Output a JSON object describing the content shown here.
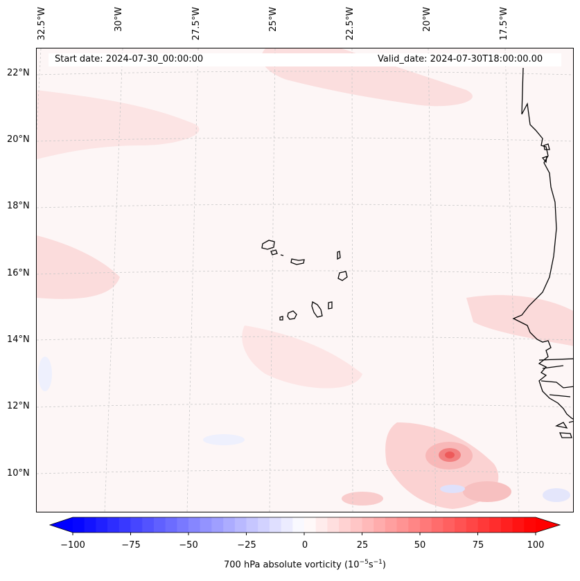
{
  "header": {
    "start_date": "Start date: 2024-07-30_00:00:00",
    "valid_date": "Valid_date: 2024-07-30T18:00:00.00"
  },
  "map": {
    "lon_labels": [
      "32.5°W",
      "30°W",
      "27.5°W",
      "25°W",
      "22.5°W",
      "20°W",
      "17.5°W"
    ],
    "lat_labels": [
      "22°N",
      "20°N",
      "18°N",
      "16°N",
      "14°N",
      "12°N",
      "10°N"
    ],
    "extent": {
      "lon_min": -33.0,
      "lon_max": -15.6,
      "lat_min": 8.9,
      "lat_max": 22.8
    },
    "gridlines": true,
    "background_field_color": "#fdf6f6",
    "features": [
      {
        "name": "Cabo Verde islands"
      },
      {
        "name": "West African coastline"
      },
      {
        "name": "positive vorticity maximum",
        "lon": -19.8,
        "lat": 10.6
      }
    ]
  },
  "colorbar": {
    "min": -100,
    "max": 100,
    "ticks": [
      "−100",
      "−75",
      "−50",
      "−25",
      "0",
      "25",
      "50",
      "75",
      "100"
    ],
    "tick_values": [
      -100,
      -75,
      -50,
      -25,
      0,
      25,
      50,
      75,
      100
    ],
    "extend": "both",
    "colormap": "bwr",
    "color_low": "#0000ff",
    "color_mid": "#ffffff",
    "color_high": "#ff0000",
    "label_prefix": "700 hPa absolute vorticity (10",
    "label_exp1": "−5",
    "label_mid": "s",
    "label_exp2": "−1",
    "label_suffix": ")"
  }
}
